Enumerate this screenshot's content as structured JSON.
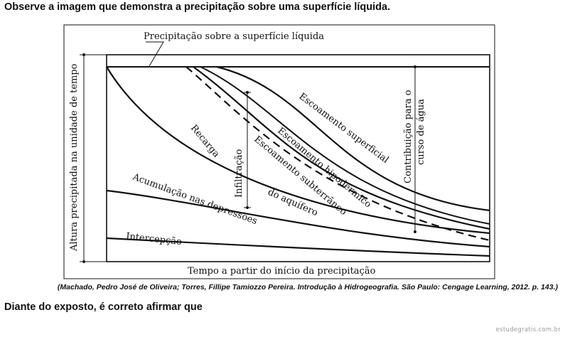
{
  "page": {
    "heading": "Observe a imagem que demonstra a precipitação sobre uma superfície líquida.",
    "citation": "(Machado, Pedro José de Oliveira; Torres, Fillipe Tamiozzo Pereira. Introdução à Hidrogeografia. São Paulo: Cengage Learning, 2012. p. 143.)",
    "question": "Diante do exposto, é correto afirmar que",
    "watermark": "estudegratis.com.br"
  },
  "diagram": {
    "top_label": "Precipitação sobre a superfície líquida",
    "y_axis_label": "Altura precipitada na unidade de tempo",
    "x_axis_label": "Tempo a partir do início da precipitação",
    "right_label_line1": "Contribuição para o",
    "right_label_line2": "curso de água",
    "regions": {
      "recarga": "Recarga",
      "escoamento_superficial": "Escoamento superficial",
      "escoamento_hipodermico": "Escoamento hipodérmico",
      "escoamento_subterraneo_line1": "Escoamento subterrâneo",
      "escoamento_subterraneo_line2": "do aquífero",
      "infiltracao": "Infiltração",
      "acumulacao": "Acumulação nas depressões",
      "interceptacao": "Intercepção"
    }
  }
}
